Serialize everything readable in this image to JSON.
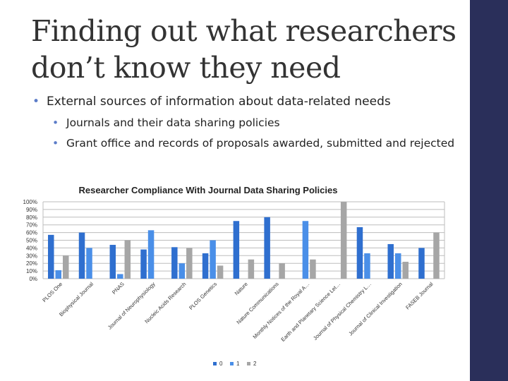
{
  "slide": {
    "title": "Finding out what researchers don’t know they need",
    "bullet": "External sources of information about data-related needs",
    "subbullets": [
      "Journals and their data sharing policies",
      "Grant office and records of proposals awarded, submitted and rejected"
    ]
  },
  "colors": {
    "sidebar": "#2a2f5a",
    "series": [
      "#2f6fcf",
      "#4a8fe8",
      "#a6a6a6"
    ]
  },
  "chart_data": {
    "type": "bar",
    "title": "Researcher Compliance With Journal Data Sharing Policies",
    "categories": [
      "PLOS One",
      "Biophysical Journal",
      "PNAS",
      "Journal of Neurophysiology",
      "Nucleic Acids Research",
      "PLOS Genetics",
      "Nature",
      "Nature Communications",
      "Monthly Notices of the Royal A…",
      "Earth and Planetary Science Let…",
      "Journal of Physical Chemistry L…",
      "Journal of Clinical Investigation",
      "FASEB Journal"
    ],
    "series": [
      {
        "name": "0",
        "values": [
          57,
          60,
          44,
          38,
          41,
          33,
          75,
          80,
          0,
          0,
          67,
          45,
          40
        ]
      },
      {
        "name": "1",
        "values": [
          11,
          40,
          6,
          63,
          20,
          50,
          0,
          0,
          75,
          0,
          33,
          33,
          0
        ]
      },
      {
        "name": "2",
        "values": [
          30,
          0,
          50,
          0,
          40,
          17,
          25,
          20,
          25,
          100,
          0,
          22,
          60
        ]
      }
    ],
    "y_ticks": [
      "0%",
      "10%",
      "20%",
      "30%",
      "40%",
      "50%",
      "60%",
      "70%",
      "80%",
      "90%",
      "100%"
    ],
    "ylim": [
      0,
      100
    ],
    "grid": true,
    "legend_position": "bottom"
  }
}
